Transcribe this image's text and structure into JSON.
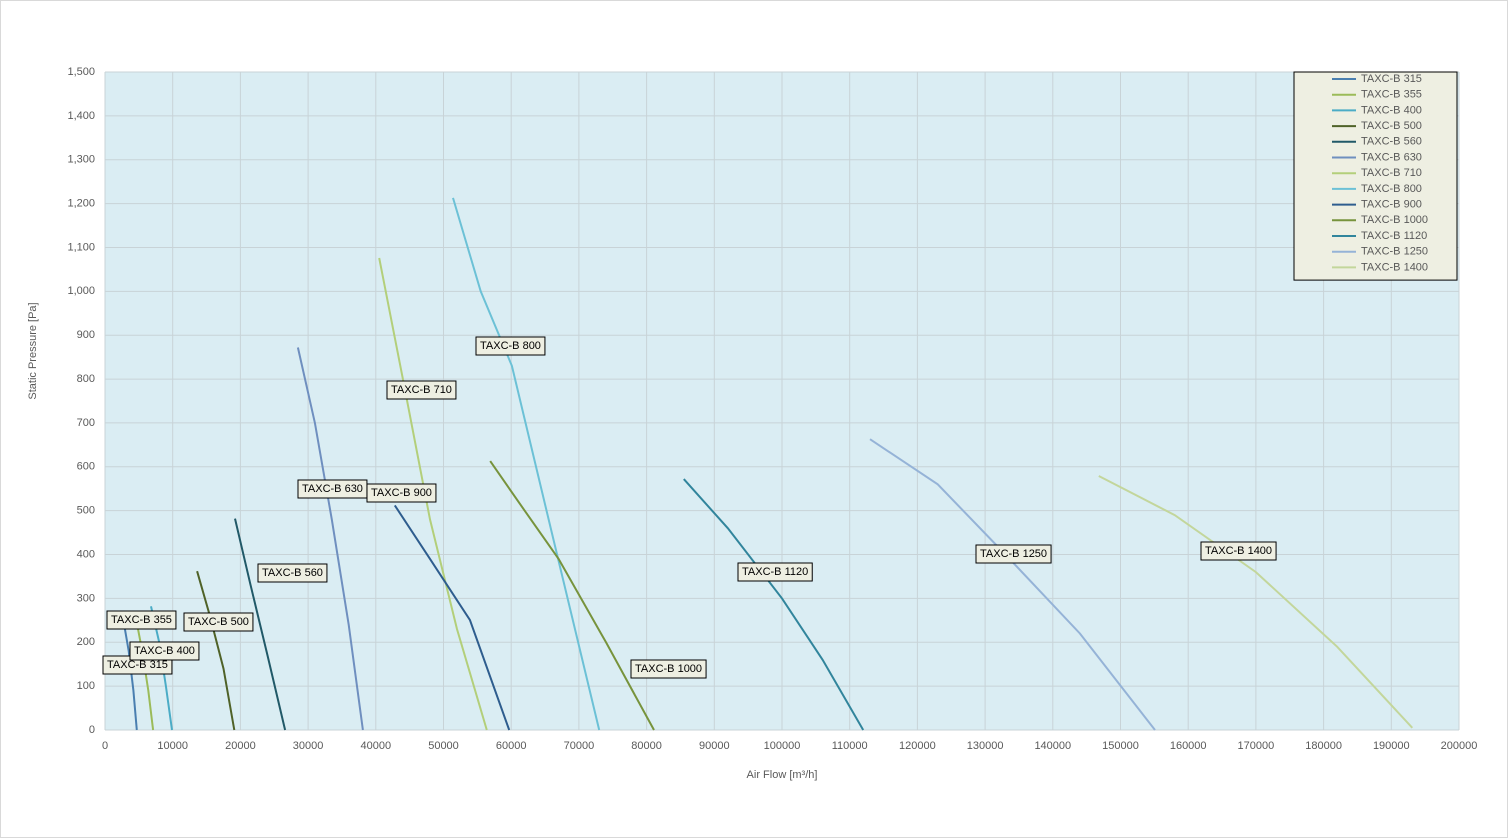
{
  "chart_data": {
    "type": "line",
    "x_label": "Air Flow [m³/h]",
    "y_label": "Static Pressure [Pa]",
    "xlim": [
      0,
      200000
    ],
    "xticks": [
      0,
      10000,
      20000,
      30000,
      40000,
      50000,
      60000,
      70000,
      80000,
      90000,
      100000,
      110000,
      120000,
      130000,
      140000,
      150000,
      160000,
      170000,
      180000,
      190000,
      200000
    ],
    "ylim": [
      0,
      1500
    ],
    "yticks": [
      0,
      100,
      200,
      300,
      400,
      500,
      600,
      700,
      800,
      900,
      {
        "value": 1000,
        "label": "1,000"
      },
      {
        "value": 1100,
        "label": "1,100"
      },
      {
        "value": 1200,
        "label": "1,200"
      },
      {
        "value": 1300,
        "label": "1,300"
      },
      {
        "value": 1400,
        "label": "1,400"
      },
      {
        "value": 1500,
        "label": "1,500"
      }
    ],
    "grid": true,
    "legend": "top-right",
    "series": [
      {
        "name": "TAXC-B 315",
        "color": "#4a7fb0",
        "x": [
          2500,
          3500,
          4200,
          4700
        ],
        "values": [
          270,
          180,
          90,
          0
        ]
      },
      {
        "name": "TAXC-B 355",
        "color": "#9bbb59",
        "x": [
          4500,
          5500,
          6400,
          7100
        ],
        "values": [
          260,
          180,
          90,
          0
        ]
      },
      {
        "name": "TAXC-B 400",
        "color": "#4bacc6",
        "x": [
          6800,
          8000,
          9000,
          9900
        ],
        "values": [
          282,
          200,
          100,
          0
        ]
      },
      {
        "name": "TAXC-B 500",
        "color": "#4f6228",
        "x": [
          13600,
          15500,
          17500,
          19100
        ],
        "values": [
          362,
          260,
          140,
          0
        ]
      },
      {
        "name": "TAXC-B 560",
        "color": "#215968",
        "x": [
          19200,
          21500,
          24000,
          26600
        ],
        "values": [
          482,
          330,
          170,
          0
        ]
      },
      {
        "name": "TAXC-B 630",
        "color": "#6f8fbf",
        "x": [
          28500,
          31000,
          33500,
          36000,
          38100
        ],
        "values": [
          872,
          700,
          480,
          240,
          0
        ]
      },
      {
        "name": "TAXC-B 710",
        "color": "#b3cf7a",
        "x": [
          40500,
          44000,
          48000,
          52000,
          56400
        ],
        "values": [
          1076,
          800,
          480,
          230,
          0
        ]
      },
      {
        "name": "TAXC-B 800",
        "color": "#6cc1d6",
        "x": [
          51400,
          55500,
          60100,
          66000,
          73000
        ],
        "values": [
          1213,
          1000,
          830,
          450,
          0
        ]
      },
      {
        "name": "TAXC-B 900",
        "color": "#2e5d8e",
        "x": [
          42800,
          48000,
          53900,
          59700
        ],
        "values": [
          512,
          390,
          251,
          0
        ]
      },
      {
        "name": "TAXC-B 1000",
        "color": "#77933c",
        "x": [
          56900,
          62000,
          67000,
          74000,
          81100
        ],
        "values": [
          613,
          500,
          390,
          200,
          0
        ]
      },
      {
        "name": "TAXC-B 1120",
        "color": "#31859c",
        "x": [
          85500,
          92000,
          100000,
          106000,
          112000
        ],
        "values": [
          572,
          460,
          300,
          160,
          0
        ]
      },
      {
        "name": "TAXC-B 1250",
        "color": "#95b3d7",
        "x": [
          113000,
          123000,
          133000,
          144000,
          155100
        ],
        "values": [
          663,
          560,
          400,
          220,
          0
        ]
      },
      {
        "name": "TAXC-B 1400",
        "color": "#c3d69b",
        "x": [
          146800,
          158000,
          170000,
          182000,
          193100
        ],
        "values": [
          579,
          490,
          360,
          190,
          5
        ]
      }
    ]
  }
}
